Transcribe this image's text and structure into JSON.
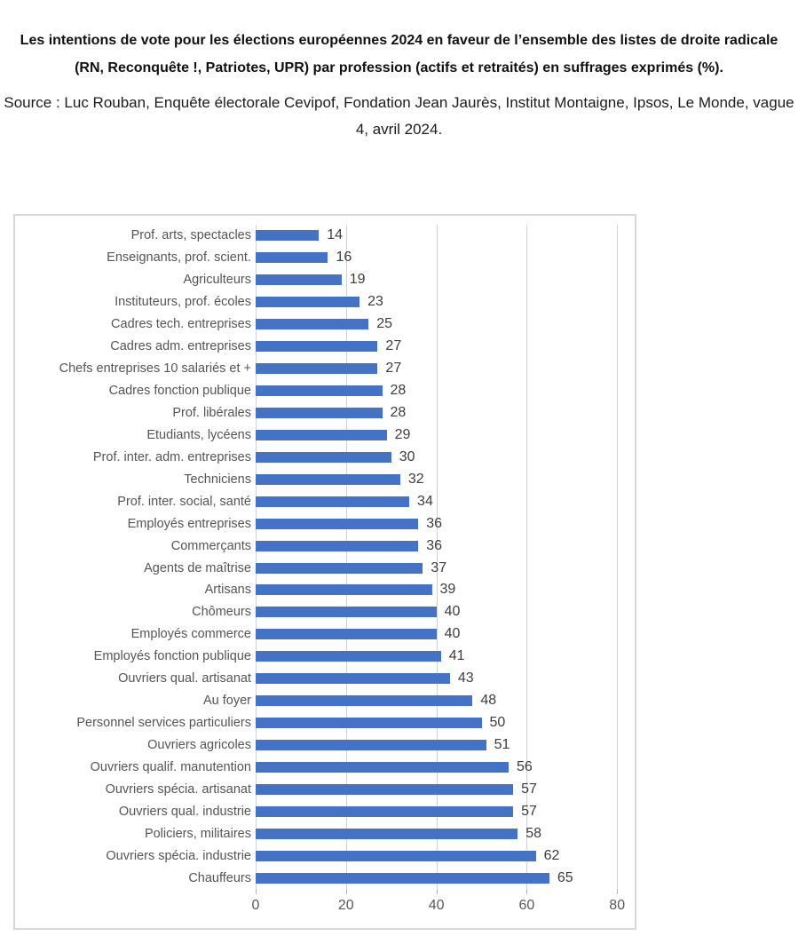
{
  "header": {
    "title": "Les intentions de vote pour les élections européennes 2024 en faveur de l’ensemble des listes de droite radicale (RN, Reconquête !, Patriotes, UPR) par profession (actifs et retraités) en suffrages exprimés (%).",
    "source": "Source : Luc Rouban, Enquête électorale Cevipof, Fondation Jean Jaurès, Institut Montaigne, Ipsos, Le Monde, vague 4, avril 2024."
  },
  "chart_data": {
    "type": "bar",
    "orientation": "horizontal",
    "title": "",
    "xlabel": "",
    "ylabel": "",
    "xlim": [
      0,
      80
    ],
    "x_ticks": [
      0,
      20,
      40,
      60,
      80
    ],
    "grid": true,
    "legend": false,
    "value_labels": true,
    "bar_color": "#4472C4",
    "categories": [
      "Prof. arts, spectacles",
      "Enseignants, prof. scient.",
      "Agriculteurs",
      "Instituteurs, prof. écoles",
      "Cadres tech. entreprises",
      "Cadres adm. entreprises",
      "Chefs entreprises 10 salariés et +",
      "Cadres fonction publique",
      "Prof. libérales",
      "Etudiants, lycéens",
      "Prof. inter. adm. entreprises",
      "Techniciens",
      "Prof. inter. social, santé",
      "Employés entreprises",
      "Commerçants",
      "Agents de maîtrise",
      "Artisans",
      "Chômeurs",
      "Employés commerce",
      "Employés fonction publique",
      "Ouvriers qual. artisanat",
      "Au foyer",
      "Personnel services particuliers",
      "Ouvriers agricoles",
      "Ouvriers qualif. manutention",
      "Ouvriers spécia. artisanat",
      "Ouvriers qual. industrie",
      "Policiers, militaires",
      "Ouvriers spécia. industrie",
      "Chauffeurs"
    ],
    "values": [
      14,
      16,
      19,
      23,
      25,
      27,
      27,
      28,
      28,
      29,
      30,
      32,
      34,
      36,
      36,
      37,
      39,
      40,
      40,
      41,
      43,
      48,
      50,
      51,
      56,
      57,
      57,
      58,
      62,
      65
    ]
  }
}
